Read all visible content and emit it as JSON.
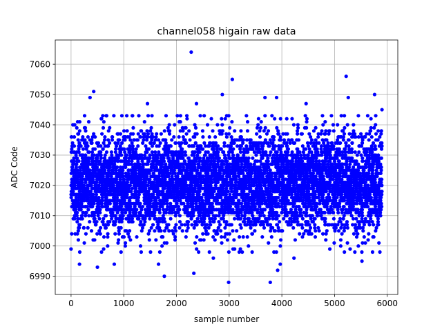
{
  "chart_data": {
    "type": "scatter",
    "title": "channel058 higain raw data",
    "xlabel": "sample number",
    "ylabel": "ADC Code",
    "xlim": [
      -300,
      6200
    ],
    "ylim": [
      6984,
      7068
    ],
    "x_ticks": [
      0,
      1000,
      2000,
      3000,
      4000,
      5000,
      6000
    ],
    "y_ticks": [
      6990,
      7000,
      7010,
      7020,
      7030,
      7040,
      7050,
      7060
    ],
    "grid": true,
    "marker_color": "#0000ff",
    "series": [
      {
        "n_samples": 5900,
        "x_range": [
          0,
          5900
        ],
        "typical_mean": 7021,
        "typical_std": 8.2,
        "outliers": [
          {
            "x": 2280,
            "y": 7064
          },
          {
            "x": 3060,
            "y": 7055
          },
          {
            "x": 5220,
            "y": 7056
          },
          {
            "x": 430,
            "y": 7051
          },
          {
            "x": 2870,
            "y": 7050
          },
          {
            "x": 5760,
            "y": 7050
          },
          {
            "x": 3900,
            "y": 7049
          },
          {
            "x": 5260,
            "y": 7049
          },
          {
            "x": 3680,
            "y": 7049
          },
          {
            "x": 360,
            "y": 7049
          },
          {
            "x": 4460,
            "y": 7047
          },
          {
            "x": 1450,
            "y": 7047
          },
          {
            "x": 2380,
            "y": 7047
          },
          {
            "x": 5900,
            "y": 7045
          },
          {
            "x": 1770,
            "y": 6990
          },
          {
            "x": 2330,
            "y": 6991
          },
          {
            "x": 2990,
            "y": 6988
          },
          {
            "x": 3780,
            "y": 6988
          },
          {
            "x": 3920,
            "y": 6992
          },
          {
            "x": 3970,
            "y": 6994
          },
          {
            "x": 5520,
            "y": 6995
          },
          {
            "x": 500,
            "y": 6993
          },
          {
            "x": 160,
            "y": 6994
          },
          {
            "x": 820,
            "y": 6994
          },
          {
            "x": 1660,
            "y": 6994
          },
          {
            "x": 4230,
            "y": 6996
          },
          {
            "x": 2700,
            "y": 6996
          }
        ]
      }
    ]
  }
}
